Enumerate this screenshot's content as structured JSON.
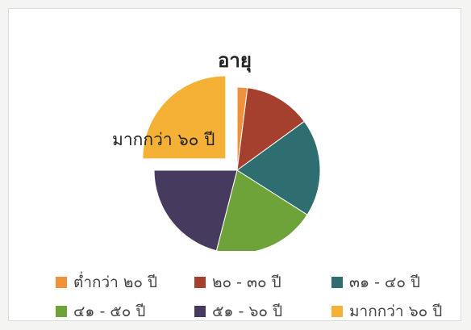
{
  "chart_data": {
    "type": "pie",
    "title": "อายุ",
    "slices": [
      {
        "label": "ต่ำกว่า ๒๐ ปี",
        "value": 2,
        "color": "#f0913c"
      },
      {
        "label": "๒๐ - ๓๐ ปี",
        "value": 13,
        "color": "#a5402f"
      },
      {
        "label": "๓๑ - ๔๐ ปี",
        "value": 19,
        "color": "#2f6e70"
      },
      {
        "label": "๔๑ - ๕๐ ปี",
        "value": 20,
        "color": "#6ea33a"
      },
      {
        "label": "๕๑ - ๖๐ ปี",
        "value": 21,
        "color": "#463b5e"
      },
      {
        "label": "มากกว่า ๖๐ ปี",
        "value": 25,
        "color": "#f5b135",
        "exploded": true
      }
    ],
    "data_labels": [
      {
        "text": "มากกว่า ๖๐ ปี"
      }
    ],
    "legend_position": "bottom"
  }
}
